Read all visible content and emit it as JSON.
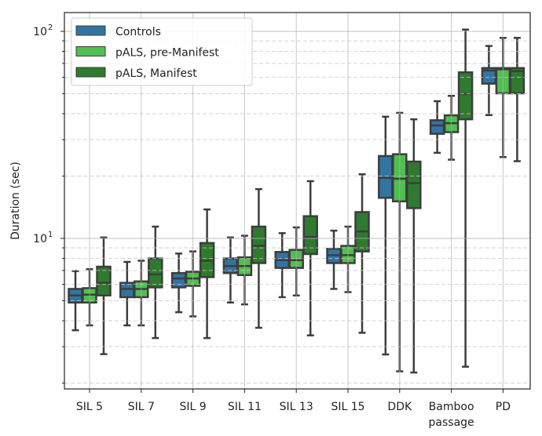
{
  "chart_data": {
    "type": "box",
    "title": "",
    "xlabel": "",
    "ylabel": "Duration (sec)",
    "yscale": "log",
    "ylim": [
      1.87,
      123
    ],
    "y_major_ticks": [
      {
        "value": 10,
        "base": "10",
        "exp": "1"
      },
      {
        "value": 100,
        "base": "10",
        "exp": "2"
      }
    ],
    "grid": true,
    "legend_position": "top-left",
    "categories": [
      [
        "SIL 5"
      ],
      [
        "SIL 7"
      ],
      [
        "SIL 9"
      ],
      [
        "SIL 11"
      ],
      [
        "SIL 13"
      ],
      [
        "SIL 15"
      ],
      [
        "DDK"
      ],
      [
        "Bamboo",
        "passage"
      ],
      [
        "PD"
      ]
    ],
    "series": [
      {
        "name": "Controls",
        "color": "#3274a1",
        "boxes": [
          {
            "low": 3.6,
            "q1": 4.9,
            "median": 5.3,
            "q3": 5.7,
            "high": 6.95
          },
          {
            "low": 3.8,
            "q1": 5.2,
            "median": 5.7,
            "q3": 6.1,
            "high": 7.7
          },
          {
            "low": 4.4,
            "q1": 5.8,
            "median": 6.4,
            "q3": 6.8,
            "high": 8.45
          },
          {
            "low": 4.9,
            "q1": 6.8,
            "median": 7.35,
            "q3": 8.0,
            "high": 10.1
          },
          {
            "low": 5.2,
            "q1": 7.2,
            "median": 7.85,
            "q3": 8.6,
            "high": 10.6
          },
          {
            "low": 5.7,
            "q1": 7.6,
            "median": 8.3,
            "q3": 8.9,
            "high": 10.9
          },
          {
            "low": 2.75,
            "q1": 15.7,
            "median": 19.6,
            "q3": 25.0,
            "high": 38.7
          },
          {
            "low": 25.9,
            "q1": 32.0,
            "median": 35.1,
            "q3": 37.2,
            "high": 46.0
          },
          {
            "low": 39.4,
            "q1": 55.9,
            "median": 64.7,
            "q3": 66.5,
            "high": 85.0
          }
        ]
      },
      {
        "name": "pALS, pre-Manifest",
        "color": "#4fbf4f",
        "boxes": [
          {
            "low": 3.8,
            "q1": 4.9,
            "median": 5.35,
            "q3": 5.75,
            "high": 7.1
          },
          {
            "low": 3.8,
            "q1": 5.2,
            "median": 5.7,
            "q3": 6.2,
            "high": 7.8
          },
          {
            "low": 4.2,
            "q1": 5.9,
            "median": 6.4,
            "q3": 6.9,
            "high": 8.65
          },
          {
            "low": 4.8,
            "q1": 6.65,
            "median": 7.35,
            "q3": 8.1,
            "high": 10.3
          },
          {
            "low": 5.3,
            "q1": 7.2,
            "median": 7.85,
            "q3": 8.8,
            "high": 11.3
          },
          {
            "low": 5.5,
            "q1": 7.6,
            "median": 8.3,
            "q3": 9.2,
            "high": 11.4
          },
          {
            "low": 2.28,
            "q1": 15.1,
            "median": 19.4,
            "q3": 25.5,
            "high": 40.4
          },
          {
            "low": 24.0,
            "q1": 32.6,
            "median": 36.0,
            "q3": 39.3,
            "high": 48.8
          },
          {
            "low": 24.7,
            "q1": 50.2,
            "median": 65.6,
            "q3": 66.5,
            "high": 93.0
          }
        ]
      },
      {
        "name": "pALS, Manifest",
        "color": "#2f7a2f",
        "boxes": [
          {
            "low": 2.76,
            "q1": 5.3,
            "median": 6.1,
            "q3": 7.3,
            "high": 10.1
          },
          {
            "low": 3.3,
            "q1": 5.8,
            "median": 6.7,
            "q3": 8.0,
            "high": 11.4
          },
          {
            "low": 3.3,
            "q1": 6.5,
            "median": 7.8,
            "q3": 9.5,
            "high": 13.8
          },
          {
            "low": 3.7,
            "q1": 7.6,
            "median": 9.2,
            "q3": 11.4,
            "high": 17.3
          },
          {
            "low": 3.4,
            "q1": 8.4,
            "median": 10.15,
            "q3": 12.8,
            "high": 18.9
          },
          {
            "low": 3.5,
            "q1": 8.65,
            "median": 10.8,
            "q3": 13.4,
            "high": 20.4
          },
          {
            "low": 2.25,
            "q1": 14.0,
            "median": 18.5,
            "q3": 23.5,
            "high": 37.6
          },
          {
            "low": 2.4,
            "q1": 37.6,
            "median": 49.8,
            "q3": 63.4,
            "high": 102.0
          },
          {
            "low": 23.6,
            "q1": 50.2,
            "median": 64.3,
            "q3": 66.5,
            "high": 93.0
          }
        ]
      }
    ]
  }
}
